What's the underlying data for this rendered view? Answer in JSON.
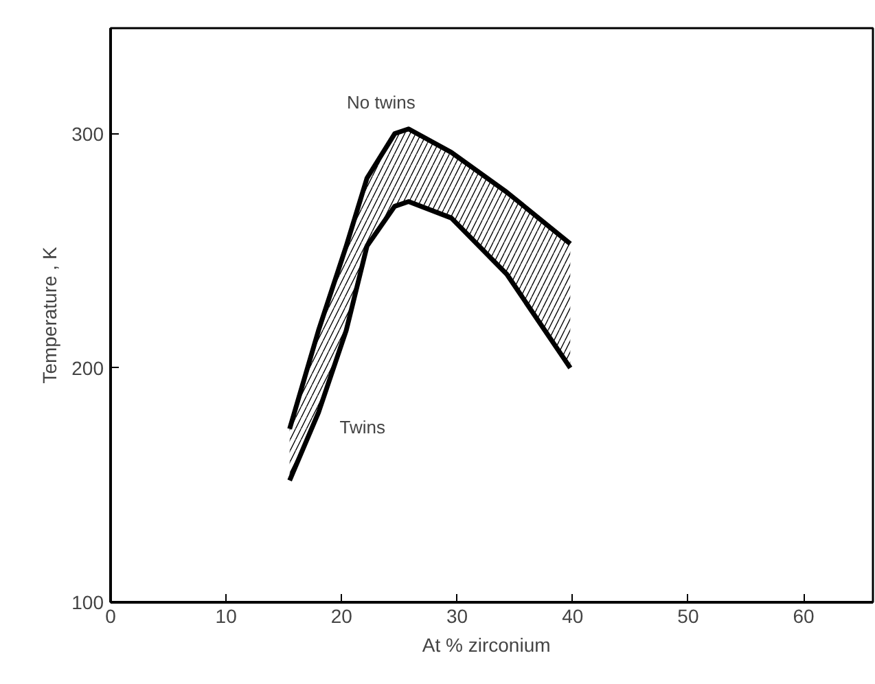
{
  "chart_data": {
    "type": "line",
    "xlabel": "At  %  zirconium",
    "ylabel": "Temperature , K",
    "x": [
      15.5,
      18,
      20.4,
      22.2,
      24.6,
      25.8,
      29.5,
      34.3,
      39.8
    ],
    "series": [
      {
        "color": "#000000",
        "values": [
          174,
          216,
          252,
          281,
          300,
          302,
          292,
          275,
          253
        ],
        "upper": [
          174,
          216,
          252,
          281,
          300,
          302,
          292,
          275,
          253
        ],
        "lower": [
          152,
          181,
          216,
          252,
          269,
          271,
          264,
          240,
          200
        ]
      },
      {
        "color": "#000000",
        "values": [
          152,
          181,
          216,
          252,
          269,
          271,
          264,
          240,
          200
        ]
      }
    ],
    "annotations": [
      {
        "text": "No twins",
        "x": 25.8,
        "y": 302
      },
      {
        "text": "Twins",
        "x": 18,
        "y": 181
      }
    ],
    "xlim": [
      0,
      66
    ],
    "ylim": [
      100,
      345
    ],
    "xticks": [
      0,
      10,
      20,
      30,
      40,
      50,
      60
    ],
    "yticks": [
      100,
      200,
      300
    ],
    "grid": false,
    "marker": "none",
    "line_style": "solid"
  }
}
